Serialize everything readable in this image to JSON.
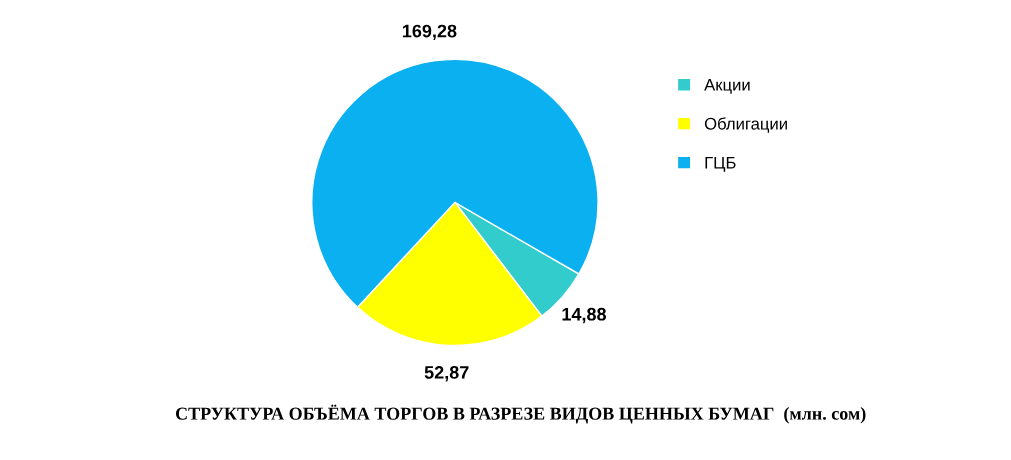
{
  "chart_data": {
    "type": "pie",
    "title": "СТРУКТУРА ОБЪЁМА ТОРГОВ В РАЗРЕЗЕ ВИДОВ ЦЕННЫХ БУМАГ  (млн. сом)",
    "categories": [
      "Акции",
      "Облигации",
      "ГЦБ"
    ],
    "values": [
      14.88,
      52.87,
      169.28
    ],
    "value_labels": [
      "14,88",
      "52,87",
      "169,28"
    ],
    "colors": [
      "#33cccc",
      "#ffff00",
      "#0ab0f0"
    ],
    "legend": "right"
  }
}
